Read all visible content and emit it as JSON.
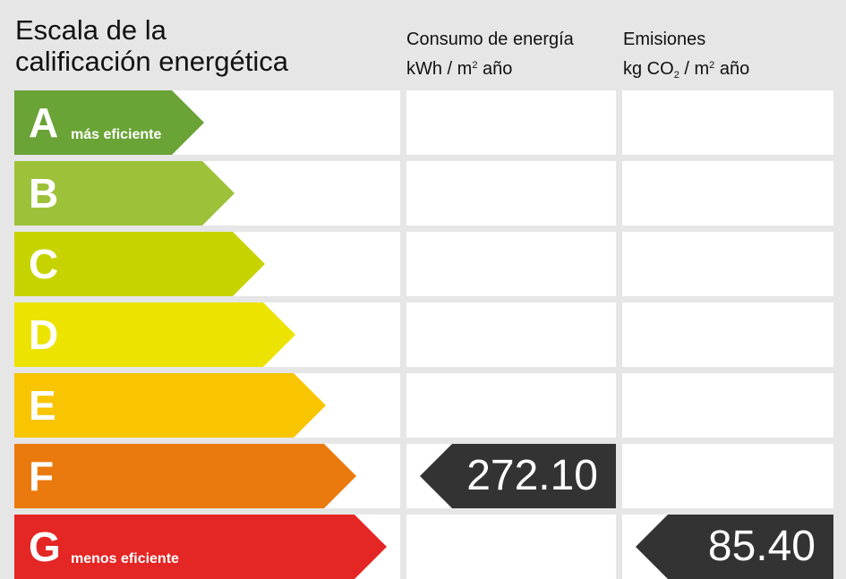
{
  "title": {
    "line1": "Escala de la",
    "line2": "calificación energética"
  },
  "consumption_header": {
    "line1": "Consumo de energía",
    "unit_prefix": "kWh / m",
    "unit_sup": "2",
    "unit_suffix": " año"
  },
  "emissions_header": {
    "line1": "Emisiones",
    "unit_prefix": "kg CO",
    "unit_sub": "2",
    "unit_mid": " / m",
    "unit_sup": "2",
    "unit_suffix": " año"
  },
  "bands": [
    {
      "letter": "A",
      "note": "más eficiente",
      "color": "#6aa336"
    },
    {
      "letter": "B",
      "note": "",
      "color": "#9dc23a"
    },
    {
      "letter": "C",
      "note": "",
      "color": "#c7d300"
    },
    {
      "letter": "D",
      "note": "",
      "color": "#ece300"
    },
    {
      "letter": "E",
      "note": "",
      "color": "#f9c400"
    },
    {
      "letter": "F",
      "note": "",
      "color": "#ea7a0e"
    },
    {
      "letter": "G",
      "note": "menos eficiente",
      "color": "#e42625"
    }
  ],
  "consumption": {
    "rating": "F",
    "value": "272.10"
  },
  "emissions": {
    "rating": "G",
    "value": "85.40"
  },
  "badge_color": "#333333"
}
